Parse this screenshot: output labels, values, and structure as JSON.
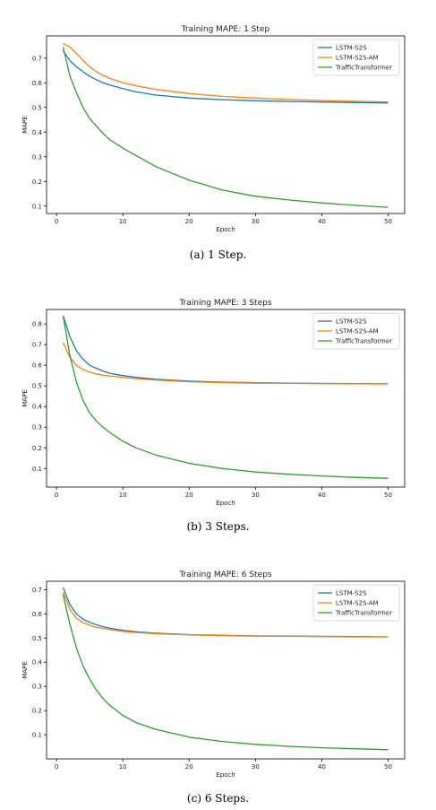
{
  "colors": {
    "lstm": "#1f77b4",
    "lstm_am": "#ff7f0e",
    "transformer": "#2ca02c"
  },
  "chart_data": [
    {
      "type": "line",
      "title": "Training MAPE: 1 Step",
      "xlabel": "Epoch",
      "ylabel": "MAPE",
      "xlim": [
        -1.5,
        52.5
      ],
      "ylim": [
        0.07,
        0.79
      ],
      "xticks": [
        0,
        10,
        20,
        30,
        40,
        50
      ],
      "yticks": [
        0.1,
        0.2,
        0.3,
        0.4,
        0.5,
        0.6,
        0.7
      ],
      "legend_position": "top-right",
      "caption": "(a)  1 Step.",
      "series": [
        {
          "name": "LSTM-S2S",
          "color": "#1f77b4",
          "x": [
            1,
            2,
            3,
            4,
            5,
            6,
            7,
            8,
            10,
            12,
            15,
            20,
            25,
            30,
            35,
            40,
            45,
            50
          ],
          "y": [
            0.73,
            0.69,
            0.665,
            0.645,
            0.627,
            0.612,
            0.6,
            0.591,
            0.576,
            0.563,
            0.55,
            0.538,
            0.531,
            0.527,
            0.524,
            0.522,
            0.52,
            0.518
          ]
        },
        {
          "name": "LSTM-S2S-AM",
          "color": "#ff7f0e",
          "x": [
            1,
            2,
            3,
            4,
            5,
            6,
            7,
            8,
            10,
            12,
            15,
            20,
            25,
            30,
            35,
            40,
            45,
            50
          ],
          "y": [
            0.76,
            0.745,
            0.72,
            0.69,
            0.665,
            0.645,
            0.63,
            0.618,
            0.6,
            0.588,
            0.573,
            0.556,
            0.545,
            0.538,
            0.532,
            0.528,
            0.525,
            0.522
          ]
        },
        {
          "name": "TrafficTransformer",
          "color": "#2ca02c",
          "x": [
            1,
            2,
            3,
            4,
            5,
            6,
            7,
            8,
            10,
            12,
            15,
            20,
            25,
            30,
            35,
            40,
            45,
            50
          ],
          "y": [
            0.745,
            0.63,
            0.56,
            0.5,
            0.455,
            0.425,
            0.395,
            0.37,
            0.335,
            0.305,
            0.26,
            0.205,
            0.165,
            0.14,
            0.125,
            0.113,
            0.103,
            0.095
          ]
        }
      ]
    },
    {
      "type": "line",
      "title": "Training MAPE: 3 Steps",
      "xlabel": "Epoch",
      "ylabel": "MAPE",
      "xlim": [
        -1.5,
        52.5
      ],
      "ylim": [
        0.01,
        0.87
      ],
      "xticks": [
        0,
        10,
        20,
        30,
        40,
        50
      ],
      "yticks": [
        0.1,
        0.2,
        0.3,
        0.4,
        0.5,
        0.6,
        0.7,
        0.8
      ],
      "legend_position": "top-right",
      "caption": "(b)  3 Steps.",
      "series": [
        {
          "name": "LSTM-S2S",
          "color": "#1f77b4",
          "x": [
            1,
            2,
            3,
            4,
            5,
            6,
            7,
            8,
            10,
            12,
            15,
            20,
            25,
            30,
            35,
            40,
            45,
            50
          ],
          "y": [
            0.84,
            0.74,
            0.67,
            0.63,
            0.6,
            0.585,
            0.572,
            0.561,
            0.55,
            0.541,
            0.532,
            0.523,
            0.518,
            0.515,
            0.513,
            0.512,
            0.511,
            0.51
          ]
        },
        {
          "name": "LSTM-S2S-AM",
          "color": "#ff7f0e",
          "x": [
            1,
            2,
            3,
            4,
            5,
            6,
            7,
            8,
            10,
            12,
            15,
            20,
            25,
            30,
            35,
            40,
            45,
            50
          ],
          "y": [
            0.71,
            0.64,
            0.6,
            0.58,
            0.566,
            0.558,
            0.552,
            0.548,
            0.541,
            0.535,
            0.528,
            0.52,
            0.516,
            0.513,
            0.512,
            0.511,
            0.51,
            0.509
          ]
        },
        {
          "name": "TrafficTransformer",
          "color": "#2ca02c",
          "x": [
            1,
            2,
            3,
            4,
            5,
            6,
            7,
            8,
            10,
            12,
            15,
            20,
            25,
            30,
            35,
            40,
            45,
            50
          ],
          "y": [
            0.84,
            0.65,
            0.52,
            0.43,
            0.37,
            0.33,
            0.3,
            0.275,
            0.232,
            0.2,
            0.165,
            0.125,
            0.1,
            0.083,
            0.072,
            0.064,
            0.057,
            0.052
          ]
        }
      ]
    },
    {
      "type": "line",
      "title": "Training MAPE: 6 Steps",
      "xlabel": "Epoch",
      "ylabel": "MAPE",
      "xlim": [
        -1.5,
        52.5
      ],
      "ylim": [
        0.0,
        0.735
      ],
      "xticks": [
        0,
        10,
        20,
        30,
        40,
        50
      ],
      "yticks": [
        0.1,
        0.2,
        0.3,
        0.4,
        0.5,
        0.6,
        0.7
      ],
      "legend_position": "top-right",
      "caption": "(c)  6 Steps.",
      "series": [
        {
          "name": "LSTM-S2S",
          "color": "#1f77b4",
          "x": [
            1,
            2,
            3,
            4,
            5,
            6,
            7,
            8,
            10,
            12,
            15,
            20,
            25,
            30,
            35,
            40,
            45,
            50
          ],
          "y": [
            0.71,
            0.64,
            0.6,
            0.578,
            0.565,
            0.555,
            0.547,
            0.541,
            0.532,
            0.526,
            0.52,
            0.514,
            0.511,
            0.509,
            0.508,
            0.507,
            0.506,
            0.505
          ]
        },
        {
          "name": "LSTM-S2S-AM",
          "color": "#ff7f0e",
          "x": [
            1,
            2,
            3,
            4,
            5,
            6,
            7,
            8,
            10,
            12,
            15,
            20,
            25,
            30,
            35,
            40,
            45,
            50
          ],
          "y": [
            0.69,
            0.62,
            0.582,
            0.564,
            0.553,
            0.545,
            0.54,
            0.535,
            0.528,
            0.523,
            0.518,
            0.513,
            0.51,
            0.508,
            0.507,
            0.506,
            0.505,
            0.505
          ]
        },
        {
          "name": "TrafficTransformer",
          "color": "#2ca02c",
          "x": [
            1,
            2,
            3,
            4,
            5,
            6,
            7,
            8,
            10,
            12,
            15,
            20,
            25,
            30,
            35,
            40,
            45,
            50
          ],
          "y": [
            0.68,
            0.56,
            0.46,
            0.385,
            0.33,
            0.285,
            0.25,
            0.222,
            0.18,
            0.15,
            0.122,
            0.09,
            0.072,
            0.06,
            0.052,
            0.046,
            0.042,
            0.038
          ]
        }
      ]
    }
  ]
}
